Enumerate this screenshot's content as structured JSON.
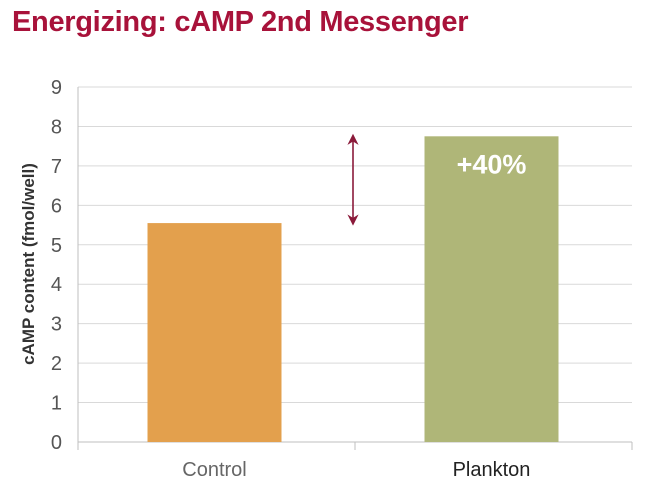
{
  "chart_data": {
    "type": "bar",
    "title": "Energizing: cAMP 2nd Messenger",
    "ylabel": "cAMP content (fmol/well)",
    "xlabel": "",
    "categories": [
      "Control",
      "Plankton"
    ],
    "values": [
      5.55,
      7.75
    ],
    "ylim": [
      0,
      9
    ],
    "yticks": [
      "0",
      "1",
      "2",
      "3",
      "4",
      "5",
      "6",
      "7",
      "8",
      "9"
    ],
    "grid": true,
    "bar_colors": [
      "#e3a04d",
      "#afb678"
    ],
    "category_label_colors": [
      "#666666",
      "#222222"
    ],
    "annotation": {
      "text": "+40%",
      "category": "Plankton",
      "arrow_between": [
        "Control",
        "Plankton"
      ]
    },
    "colors": {
      "title": "#a8123a",
      "arrow": "#8b1a3a",
      "grid": "#d9d9d9",
      "axis": "#bfbfbf"
    }
  }
}
